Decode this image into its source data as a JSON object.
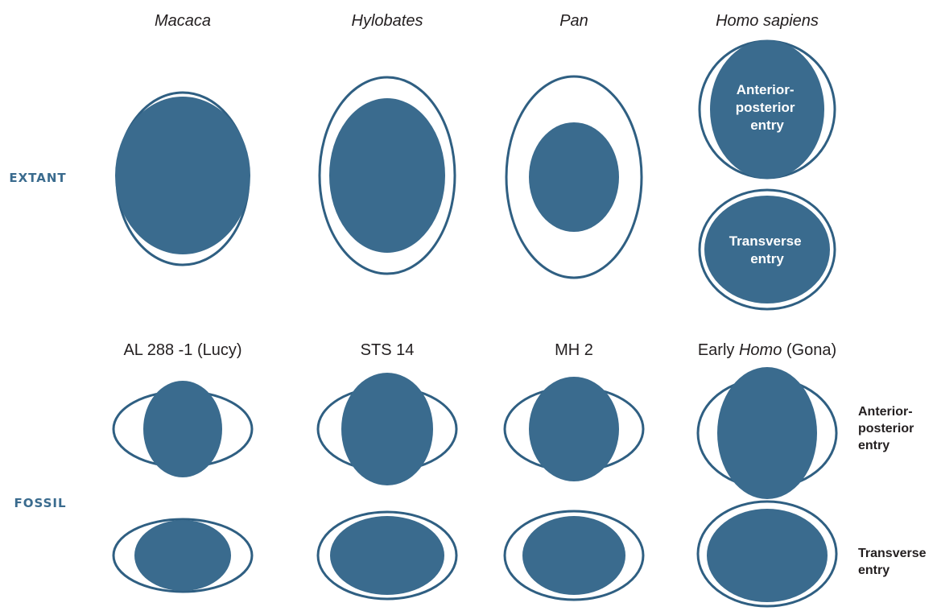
{
  "colors": {
    "fill": "#3a6b8e",
    "outline": "#2f5f82",
    "label": "#231f20",
    "row_label": "#3a6b8e",
    "background": "#ffffff"
  },
  "columns_extant": [
    {
      "text": "Macaca"
    },
    {
      "text": "Hylobates"
    },
    {
      "text": "Pan"
    },
    {
      "text": "Homo sapiens"
    }
  ],
  "columns_fossil": [
    {
      "text": "AL 288 -1 (Lucy)"
    },
    {
      "pre": "",
      "italic": "",
      "post": "STS 14"
    },
    {
      "text": "MH 2"
    },
    {
      "pre": "Early ",
      "italic": "Homo",
      "post": " (Gona)"
    }
  ],
  "rows": {
    "extant": "EXTANT",
    "fossil": "FOSSIL"
  },
  "inner_labels": {
    "ap": [
      "Anterior-",
      "posterior",
      "entry"
    ],
    "transverse": [
      "Transverse",
      "entry"
    ]
  },
  "side_labels": {
    "ap": [
      "Anterior-",
      "posterior",
      "entry"
    ],
    "transverse": [
      "Transverse",
      "entry"
    ]
  }
}
